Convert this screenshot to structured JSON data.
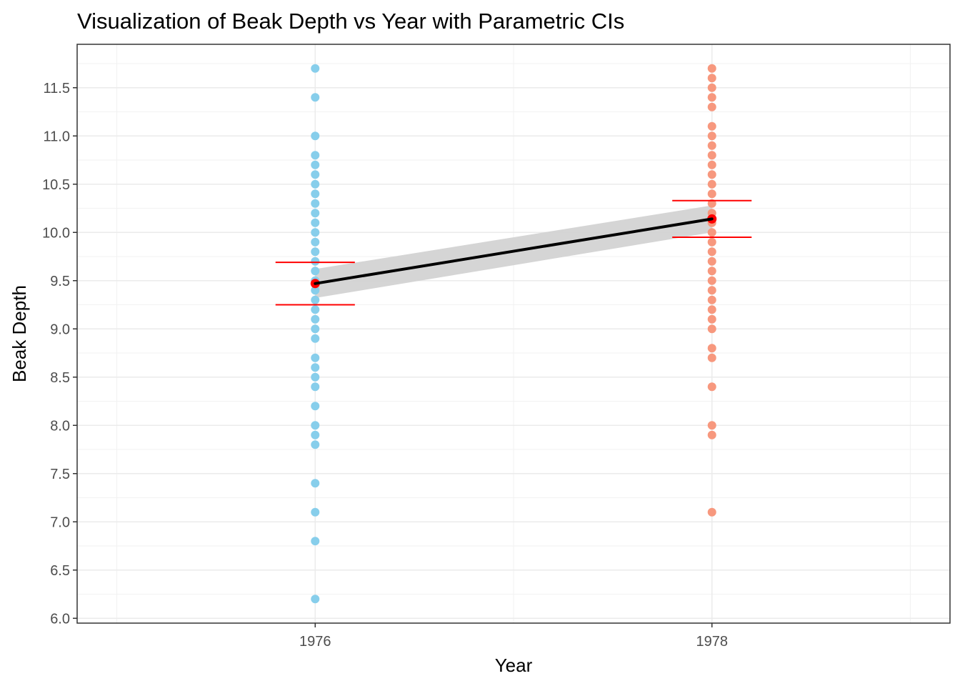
{
  "chart_data": {
    "type": "scatter",
    "title": "Visualization of Beak Depth vs Year with Parametric CIs",
    "xlabel": "Year",
    "ylabel": "Beak Depth",
    "x_ticks": [
      "1976",
      "1978"
    ],
    "x_tick_values": [
      1976,
      1978
    ],
    "xlim": [
      1974.8,
      1979.2
    ],
    "y_ticks": [
      "6.0",
      "6.5",
      "7.0",
      "7.5",
      "8.0",
      "8.5",
      "9.0",
      "9.5",
      "10.0",
      "10.5",
      "11.0",
      "11.5"
    ],
    "y_tick_values": [
      6.0,
      6.5,
      7.0,
      7.5,
      8.0,
      8.5,
      9.0,
      9.5,
      10.0,
      10.5,
      11.0,
      11.5
    ],
    "ylim": [
      5.95,
      11.95
    ],
    "grid": true,
    "legend": "none",
    "series": [
      {
        "year": 1976,
        "color": "#87ceeb",
        "values": [
          11.7,
          11.4,
          11.0,
          10.8,
          10.7,
          10.6,
          10.5,
          10.4,
          10.3,
          10.2,
          10.1,
          10.0,
          9.9,
          9.8,
          9.7,
          9.6,
          9.5,
          9.4,
          9.3,
          9.2,
          9.1,
          9.0,
          8.9,
          8.7,
          8.6,
          8.5,
          8.4,
          8.2,
          8.0,
          7.9,
          7.8,
          7.4,
          7.1,
          6.8,
          6.2
        ]
      },
      {
        "year": 1978,
        "color": "#f7987e",
        "values": [
          11.7,
          11.6,
          11.5,
          11.4,
          11.3,
          11.1,
          11.0,
          10.9,
          10.8,
          10.7,
          10.6,
          10.5,
          10.4,
          10.3,
          10.2,
          10.1,
          10.0,
          9.9,
          9.8,
          9.7,
          9.6,
          9.5,
          9.4,
          9.3,
          9.2,
          9.1,
          9.0,
          8.8,
          8.7,
          8.4,
          8.0,
          7.9,
          7.1
        ]
      }
    ],
    "means": [
      {
        "year": 1976,
        "mean": 9.47,
        "ci_low": 9.25,
        "ci_high": 9.69
      },
      {
        "year": 1978,
        "mean": 10.14,
        "ci_low": 9.95,
        "ci_high": 10.33
      }
    ],
    "regression": {
      "x": [
        1976,
        1978
      ],
      "y": [
        9.47,
        10.14
      ],
      "band_low": [
        9.32,
        10.0
      ],
      "band_high": [
        9.62,
        10.28
      ],
      "color": "#000000",
      "band_color": "#d3d3d3"
    },
    "ci_color": "#ff0000"
  }
}
